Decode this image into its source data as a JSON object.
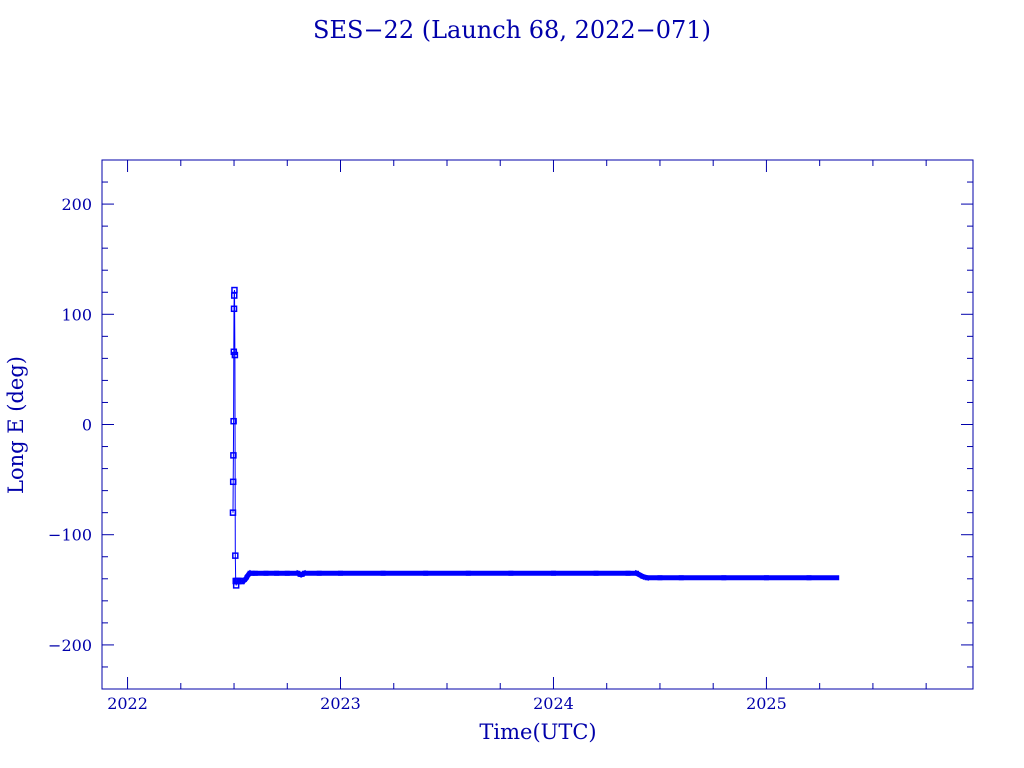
{
  "chart_data": {
    "type": "line",
    "title": "SES−22 (Launch 68, 2022−071)",
    "xlabel": "Time(UTC)",
    "ylabel": "Long E (deg)",
    "xlim": [
      2021.88,
      2025.97
    ],
    "ylim": [
      -240,
      240
    ],
    "x_ticks": [
      {
        "value": 2022,
        "label": "2022"
      },
      {
        "value": 2023,
        "label": "2023"
      },
      {
        "value": 2024,
        "label": "2024"
      },
      {
        "value": 2025,
        "label": "2025"
      }
    ],
    "y_ticks": [
      {
        "value": 200,
        "label": "200"
      },
      {
        "value": 100,
        "label": "100"
      },
      {
        "value": 0,
        "label": "0"
      },
      {
        "value": -100,
        "label": "−100"
      },
      {
        "value": -200,
        "label": "−200"
      }
    ],
    "grid": false,
    "series": [
      {
        "color": "#0000ff",
        "x": [
          2022.495,
          2022.496,
          2022.497,
          2022.498,
          2022.499,
          2022.5,
          2022.501,
          2022.502,
          2022.504,
          2022.506,
          2022.508,
          2022.51,
          2022.513,
          2022.518,
          2022.525,
          2022.535,
          2022.545,
          2022.555,
          2022.565,
          2022.575,
          2022.585,
          2022.6,
          2022.65,
          2022.7,
          2022.75,
          2022.8,
          2022.81,
          2022.82,
          2022.83,
          2022.9,
          2023.0,
          2023.2,
          2023.4,
          2023.6,
          2023.8,
          2024.0,
          2024.2,
          2024.35,
          2024.39,
          2024.4,
          2024.41,
          2024.42,
          2024.44,
          2024.5,
          2024.6,
          2024.8,
          2025.0,
          2025.2,
          2025.33
        ],
        "y": [
          -80,
          -52,
          -28,
          3,
          66,
          105,
          117,
          122,
          63,
          -119,
          -142,
          -146,
          -142,
          -142,
          -142,
          -142,
          -142,
          -140,
          -137,
          -135,
          -135,
          -135,
          -135,
          -135,
          -135,
          -135,
          -136,
          -136,
          -135,
          -135,
          -135,
          -135,
          -135,
          -135,
          -135,
          -135,
          -135,
          -135,
          -135,
          -136,
          -137,
          -138,
          -139,
          -139,
          -139,
          -139,
          -139,
          -139,
          -139
        ]
      }
    ]
  }
}
